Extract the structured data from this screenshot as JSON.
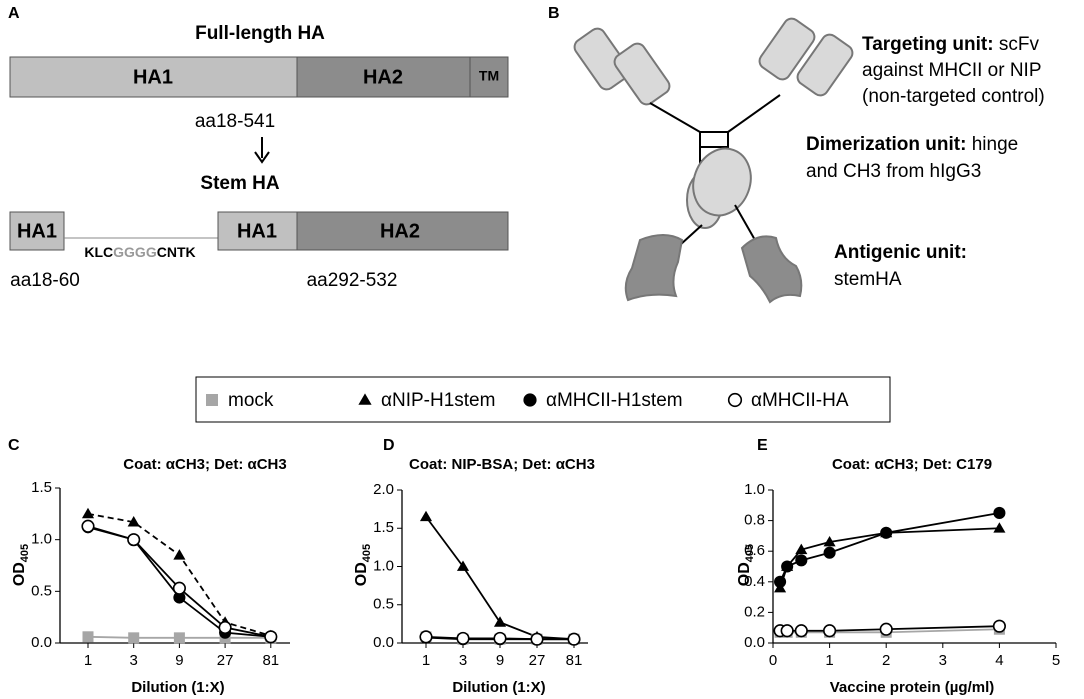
{
  "panel_a": {
    "label": "A",
    "title": "Full-length HA",
    "full": {
      "ha1": "HA1",
      "ha2": "HA2",
      "tm": "TM"
    },
    "full_range": "aa18-541",
    "stem_title": "Stem HA",
    "stem": {
      "ha1_left": "HA1",
      "linker": [
        "KLC",
        "GGGG",
        "CNTK"
      ],
      "ha1_right": "HA1",
      "ha2": "HA2"
    },
    "left_range": "aa18-60",
    "right_range": "aa292-532"
  },
  "panel_b": {
    "label": "B",
    "targeting": {
      "head": "Targeting unit:",
      "lines": [
        " scFv",
        "against MHCII or NIP",
        "(non-targeted control)"
      ]
    },
    "dimerization": {
      "head": "Dimerization unit:",
      "lines": [
        " hinge",
        "and CH3 from hIgG3"
      ]
    },
    "antigenic": {
      "head": "Antigenic unit:",
      "lines": [
        "stemHA"
      ]
    }
  },
  "chart_data": [
    {
      "type": "line",
      "label": "C",
      "title": "Coat: αCH3; Det: αCH3",
      "xlabel": "Dilution (1:X)",
      "ylabel": {
        "main": "OD",
        "sub": "405"
      },
      "categories": [
        "1",
        "3",
        "9",
        "27",
        "81"
      ],
      "ylim": [
        0,
        1.5
      ],
      "yticks": [
        {
          "value": 0,
          "label": "0.0"
        },
        0.5,
        {
          "value": 1,
          "label": "1.0"
        },
        1.5
      ],
      "series": [
        {
          "name": "mock",
          "color": "#a6a6a6",
          "marker": "square",
          "values": [
            0.06,
            0.05,
            0.05,
            0.05,
            0.05
          ]
        },
        {
          "name": "αNIP-H1stem",
          "color": "#000000",
          "marker": "triangle",
          "dashed": true,
          "values": [
            1.25,
            1.17,
            0.85,
            0.2,
            0.07
          ]
        },
        {
          "name": "αMHCII-H1stem",
          "color": "#000000",
          "marker": "circle",
          "values": [
            1.12,
            1.0,
            0.44,
            0.1,
            0.06
          ]
        },
        {
          "name": "αMHCII-HA",
          "color": "#000000",
          "marker": "circle-open",
          "values": [
            1.13,
            1.0,
            0.53,
            0.15,
            0.06
          ]
        }
      ]
    },
    {
      "type": "line",
      "label": "D",
      "title": "Coat: NIP-BSA; Det: αCH3",
      "xlabel": "Dilution (1:X)",
      "ylabel": {
        "main": "OD",
        "sub": "405"
      },
      "categories": [
        "1",
        "3",
        "9",
        "27",
        "81"
      ],
      "ylim": [
        0,
        2
      ],
      "yticks": [
        {
          "value": 0,
          "label": "0.0"
        },
        0.5,
        {
          "value": 1,
          "label": "1.0"
        },
        1.5,
        {
          "value": 2,
          "label": "2.0"
        }
      ],
      "series": [
        {
          "name": "mock",
          "color": "#a6a6a6",
          "marker": "square",
          "values": [
            0.08,
            0.05,
            0.05,
            0.05,
            0.05
          ]
        },
        {
          "name": "αNIP-H1stem",
          "color": "#000000",
          "marker": "triangle",
          "values": [
            1.65,
            1.0,
            0.27,
            0.08,
            0.05
          ]
        },
        {
          "name": "αMHCII-H1stem",
          "color": "#000000",
          "marker": "circle",
          "values": [
            0.07,
            0.05,
            0.05,
            0.05,
            0.05
          ]
        },
        {
          "name": "αMHCII-HA",
          "color": "#000000",
          "marker": "circle-open",
          "values": [
            0.08,
            0.06,
            0.06,
            0.05,
            0.05
          ]
        }
      ]
    },
    {
      "type": "scatter-line",
      "label": "E",
      "title": "Coat: αCH3; Det: C179",
      "xlabel": "Vaccine protein (µg/ml)",
      "ylabel": {
        "main": "OD",
        "sub": "405"
      },
      "x": [
        0.125,
        0.25,
        0.5,
        1,
        2,
        4
      ],
      "xlim": [
        0,
        5
      ],
      "xticks": [
        0,
        1,
        2,
        3,
        4,
        5
      ],
      "ylim": [
        0,
        1
      ],
      "yticks": [
        {
          "value": 0,
          "label": "0.0"
        },
        0.2,
        0.4,
        0.6,
        0.8,
        {
          "value": 1,
          "label": "1.0"
        }
      ],
      "series": [
        {
          "name": "mock",
          "color": "#a6a6a6",
          "marker": "square",
          "values": [
            0.07,
            0.07,
            0.07,
            0.07,
            0.07,
            0.09
          ]
        },
        {
          "name": "αNIP-H1stem",
          "color": "#000000",
          "marker": "triangle",
          "values": [
            0.36,
            0.5,
            0.61,
            0.66,
            0.72,
            0.75
          ]
        },
        {
          "name": "αMHCII-H1stem",
          "color": "#000000",
          "marker": "circle",
          "values": [
            0.4,
            0.5,
            0.54,
            0.59,
            0.72,
            0.85
          ]
        },
        {
          "name": "αMHCII-HA",
          "color": "#000000",
          "marker": "circle-open",
          "values": [
            0.08,
            0.08,
            0.08,
            0.08,
            0.09,
            0.11
          ]
        }
      ]
    }
  ]
}
